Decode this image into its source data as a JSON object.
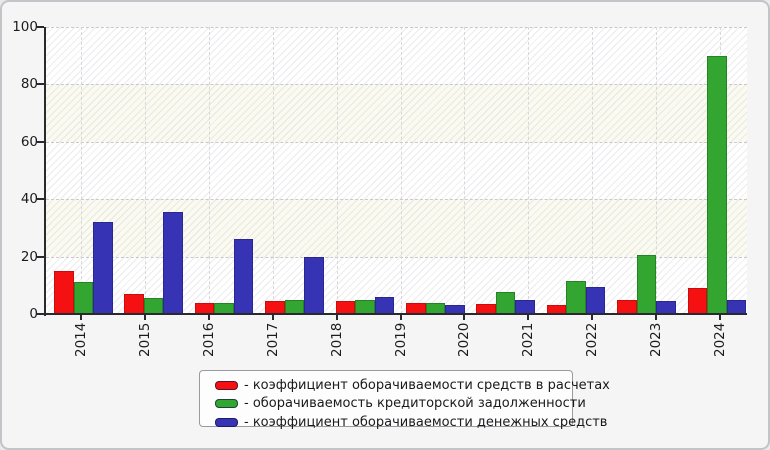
{
  "chart_data": {
    "type": "bar",
    "title": "",
    "xlabel": "",
    "ylabel": "",
    "x_tick_labels": [
      "2014",
      "2015",
      "2016",
      "2017",
      "2018",
      "2019",
      "2020",
      "2021",
      "2022",
      "2023",
      "2024"
    ],
    "y_tick_labels": [
      "0",
      "20",
      "40",
      "60",
      "80",
      "100"
    ],
    "y_ticks": [
      0,
      20,
      40,
      60,
      80,
      100
    ],
    "ylim": [
      0,
      100
    ],
    "grid": "dashed horizontal and vertical gridlines, hatched background with alternating white/cream horizontal bands",
    "legend_position": "bottom-center",
    "layout_note": "10 bar groups are drawn under 11 year ticks; groups drift rightward so the first group aligns with 2014 and the last (tall green ~90) aligns with 2024",
    "series": [
      {
        "name": "- коэффициент оборачиваемости средств в расчетах",
        "color": "#f51111",
        "border_color": "#c90c0c",
        "values": [
          15,
          7,
          4,
          4.5,
          4.5,
          4,
          3.5,
          3,
          5,
          9
        ]
      },
      {
        "name": "- оборачиваемость кредиторской задолженности",
        "color": "#32a630",
        "border_color": "#268224",
        "values": [
          11,
          5.5,
          4,
          5,
          5,
          4,
          7.5,
          11.5,
          20.5,
          90
        ]
      },
      {
        "name": "- коэффициент оборачиваемости денежных средств",
        "color": "#3733b5",
        "border_color": "#2a2790",
        "values": [
          32,
          35.5,
          26,
          20,
          6,
          3,
          5,
          9.5,
          4.5,
          5
        ]
      }
    ]
  },
  "colors": {
    "panel_bg": "#f5f5f6",
    "panel_border": "#c4c4c8",
    "axis": "#2a2a2e",
    "grid_h": "#c9c9cd",
    "grid_v": "#d8d8dc",
    "band_cream": "#fafaf0",
    "band_white": "#ffffff",
    "legend_bg": "#fdfdfd",
    "legend_border": "#9a9aa0",
    "text": "#1c1c1e"
  }
}
